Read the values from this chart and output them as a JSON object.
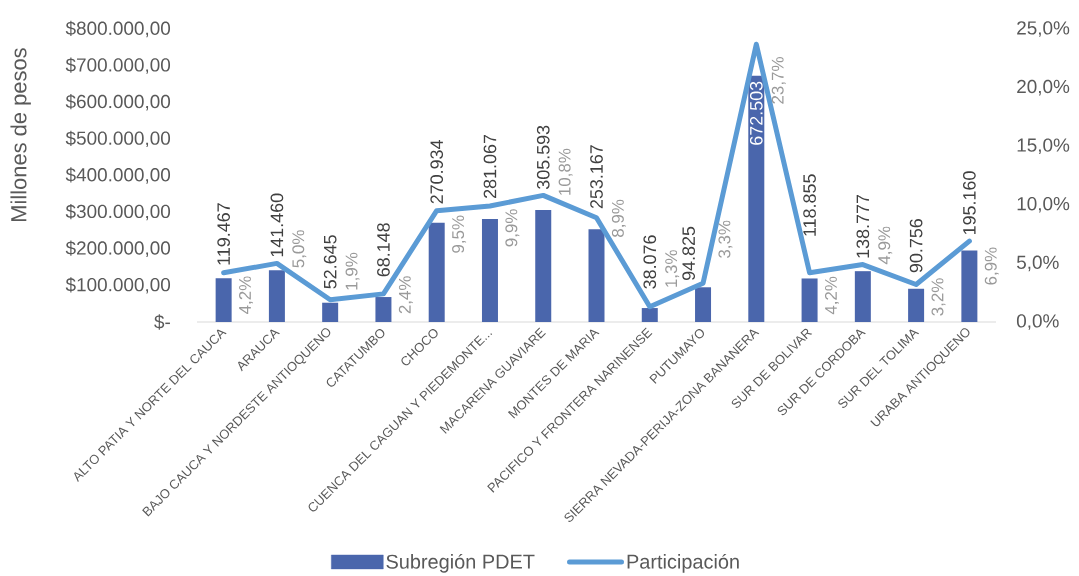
{
  "chart_data": {
    "type": "bar",
    "ylabel": "Millones de pesos",
    "categories": [
      "ALTO PATIA Y NORTE DEL CAUCA",
      "ARAUCA",
      "BAJO CAUCA Y NORDESTE ANTIOQUENO",
      "CATATUMBO",
      "CHOCO",
      "CUENCA DEL CAGUAN Y PIEDEMONTE...",
      "MACARENA GUAVIARE",
      "MONTES DE MARIA",
      "PACIFICO Y FRONTERA NARINENSE",
      "PUTUMAYO",
      "SIERRA NEVADA-PERIJA-ZONA BANANERA",
      "SUR DE BOLIVAR",
      "SUR DE CORDOBA",
      "SUR DEL TOLIMA",
      "URABA ANTIOQUENO"
    ],
    "series": [
      {
        "name": "Subregión PDET",
        "color": "#4a66ac",
        "values": [
          119467,
          141460,
          52645,
          68148,
          270934,
          281067,
          305593,
          253167,
          38076,
          94825,
          672503,
          118855,
          138777,
          90756,
          195160
        ],
        "value_labels": [
          "119.467",
          "141.460",
          "52.645",
          "68.148",
          "270.934",
          "281.067",
          "305.593",
          "253.167",
          "38.076",
          "94.825",
          "672.503",
          "118.855",
          "138.777",
          "90.756",
          "195.160"
        ]
      },
      {
        "name": "Participación",
        "type": "line",
        "axis": "y2",
        "color": "#5b9bd5",
        "values": [
          4.2,
          5.0,
          1.9,
          2.4,
          9.5,
          9.9,
          10.8,
          8.9,
          1.3,
          3.3,
          23.7,
          4.2,
          4.9,
          3.2,
          6.9
        ],
        "value_labels": [
          "4,2%",
          "5,0%",
          "1,9%",
          "2,4%",
          "9,5%",
          "9,9%",
          "10,8%",
          "8,9%",
          "1,3%",
          "3,3%",
          "23,7%",
          "4,2%",
          "4,9%",
          "3,2%",
          "6,9%"
        ]
      }
    ],
    "ylim": [
      0,
      800000
    ],
    "yticks": [
      {
        "value": 0,
        "label": "$-"
      },
      {
        "value": 100000,
        "label": "$100.000,00"
      },
      {
        "value": 200000,
        "label": "$200.000,00"
      },
      {
        "value": 300000,
        "label": "$300.000,00"
      },
      {
        "value": 400000,
        "label": "$400.000,00"
      },
      {
        "value": 500000,
        "label": "$500.000,00"
      },
      {
        "value": 600000,
        "label": "$600.000,00"
      },
      {
        "value": 700000,
        "label": "$700.000,00"
      },
      {
        "value": 800000,
        "label": "$800.000,00"
      }
    ],
    "y2lim": [
      0,
      25
    ],
    "y2ticks": [
      {
        "value": 0,
        "label": "0,0%"
      },
      {
        "value": 5,
        "label": "5,0%"
      },
      {
        "value": 10,
        "label": "10,0%"
      },
      {
        "value": 15,
        "label": "15,0%"
      },
      {
        "value": 20,
        "label": "20,0%"
      },
      {
        "value": 25,
        "label": "25,0%"
      }
    ],
    "legend": "bottom"
  }
}
